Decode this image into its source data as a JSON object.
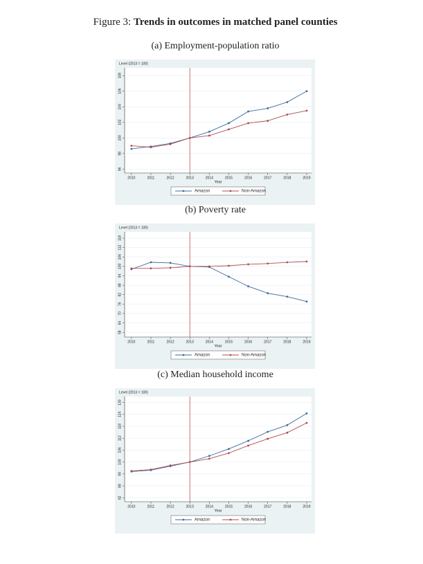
{
  "figure": {
    "label": "Figure 3:",
    "title": "Trends in outcomes in matched panel counties"
  },
  "chart_data": [
    {
      "type": "line",
      "title": "(a) Employment-population ratio",
      "y_label": "Level (2013 = 100)",
      "x_label": "Year",
      "x": [
        2010,
        2011,
        2012,
        2013,
        2014,
        2015,
        2016,
        2017,
        2018,
        2019
      ],
      "xlim": [
        2009.65,
        2019.25
      ],
      "xticks": [
        2010,
        2011,
        2012,
        2013,
        2014,
        2015,
        2016,
        2017,
        2018,
        2019
      ],
      "ylim": [
        95.5,
        109
      ],
      "yticks": [
        96,
        98,
        100,
        102,
        104,
        106,
        108
      ],
      "vline": 2013,
      "series": [
        {
          "name": "Amazon",
          "color": "#3d6a9a",
          "values": [
            98.6,
            98.9,
            99.3,
            100,
            100.8,
            101.9,
            103.4,
            103.8,
            104.6,
            106
          ]
        },
        {
          "name": "Non-Amazon",
          "color": "#b04a50",
          "values": [
            99.0,
            98.8,
            99.2,
            100,
            100.3,
            101.1,
            101.9,
            102.2,
            103.0,
            103.5
          ]
        }
      ]
    },
    {
      "type": "line",
      "title": "(b) Poverty rate",
      "y_label": "Level (2013 = 100)",
      "x_label": "Year",
      "x": [
        2010,
        2011,
        2012,
        2013,
        2014,
        2015,
        2016,
        2017,
        2018,
        2019
      ],
      "xlim": [
        2009.65,
        2019.25
      ],
      "xticks": [
        2010,
        2011,
        2012,
        2013,
        2014,
        2015,
        2016,
        2017,
        2018,
        2019
      ],
      "ylim": [
        55,
        122
      ],
      "yticks": [
        58,
        64,
        70,
        76,
        82,
        88,
        94,
        100,
        106,
        112,
        118
      ],
      "vline": 2013,
      "series": [
        {
          "name": "Amazon",
          "color": "#3d6a9a",
          "values": [
            98.2,
            102.6,
            102.2,
            100,
            99.6,
            93.4,
            87.3,
            82.9,
            80.7,
            77.6
          ]
        },
        {
          "name": "Non-Amazon",
          "color": "#b04a50",
          "values": [
            98.7,
            98.7,
            99.1,
            100,
            100,
            100.4,
            101.3,
            101.8,
            102.6,
            103.1
          ]
        }
      ]
    },
    {
      "type": "line",
      "title": "(c) Median household income",
      "y_label": "Level (2013 = 100)",
      "x_label": "Year",
      "x": [
        2010,
        2011,
        2012,
        2013,
        2014,
        2015,
        2016,
        2017,
        2018,
        2019
      ],
      "xlim": [
        2009.65,
        2019.25
      ],
      "xticks": [
        2010,
        2011,
        2012,
        2013,
        2014,
        2015,
        2016,
        2017,
        2018,
        2019
      ],
      "ylim": [
        80,
        133
      ],
      "yticks": [
        82,
        88,
        94,
        100,
        106,
        112,
        118,
        124,
        130
      ],
      "vline": 2013,
      "series": [
        {
          "name": "Amazon",
          "color": "#3d6a9a",
          "values": [
            95.2,
            95.9,
            97.9,
            100,
            103.1,
            106.6,
            110.7,
            115.2,
            118.6,
            124.5
          ]
        },
        {
          "name": "Non-Amazon",
          "color": "#b04a50",
          "values": [
            95.5,
            96.2,
            98.3,
            100,
            101.7,
            104.5,
            108.3,
            111.7,
            114.8,
            119.7
          ]
        }
      ]
    }
  ]
}
